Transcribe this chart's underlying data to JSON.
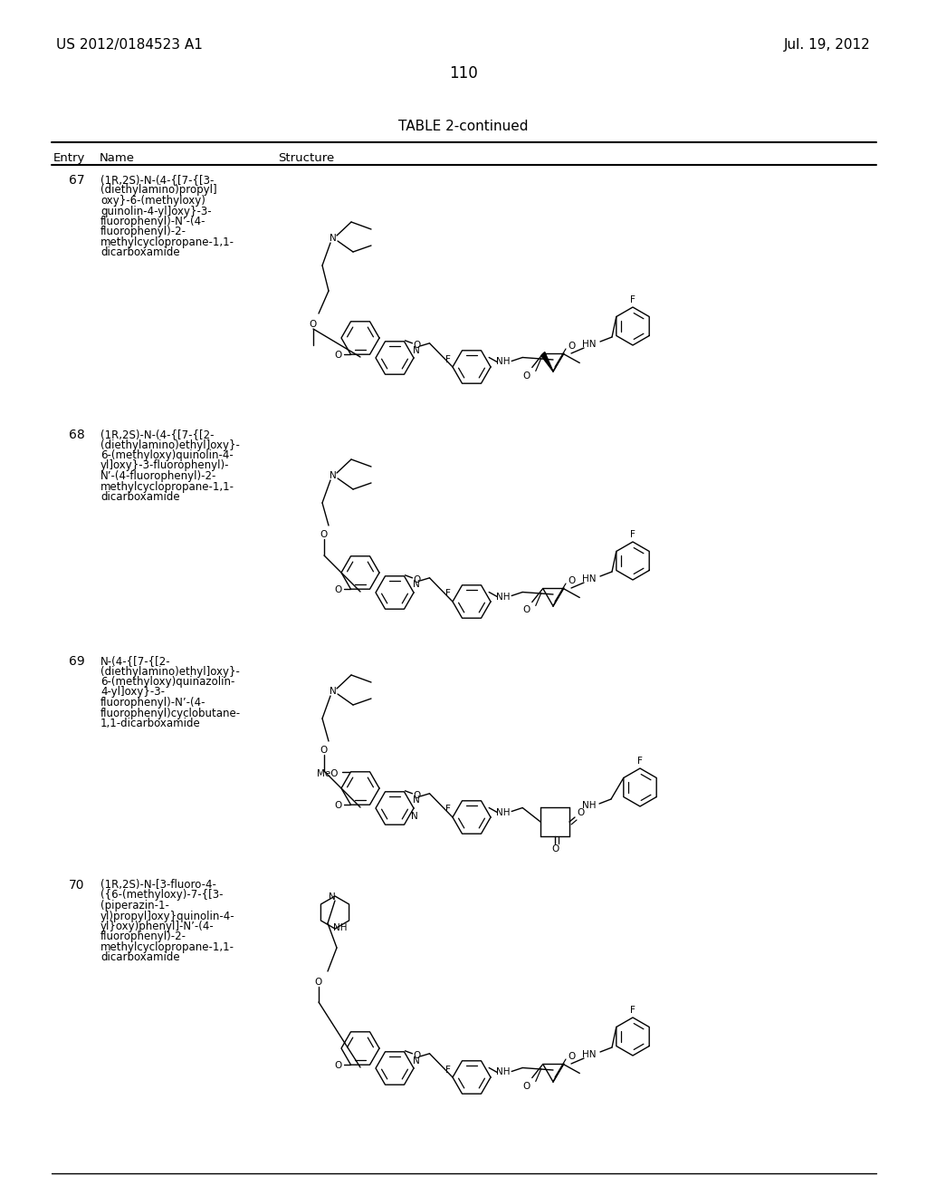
{
  "background_color": "#ffffff",
  "header_left": "US 2012/0184523 A1",
  "header_right": "Jul. 19, 2012",
  "page_number": "110",
  "table_title": "TABLE 2-continued",
  "entries": [
    {
      "number": "67",
      "name": "(1R,2S)-N-(4-{[7-{[3-\n(diethylamino)propyl]\noxy}-6-(methyloxy)\nquinolin-4-yl]oxy}-3-\nfluorophenyl)-N’-(4-\nfluorophenyl)-2-\nmethylcyclopropane-1,1-\ndicarboxamide"
    },
    {
      "number": "68",
      "name": "(1R,2S)-N-(4-{[7-{[2-\n(diethylamino)ethyl]oxy}-\n6-(methyloxy)quinolin-4-\nyl]oxy}-3-fluorophenyl)-\nN’-(4-fluorophenyl)-2-\nmethylcyclopropane-1,1-\ndicarboxamide"
    },
    {
      "number": "69",
      "name": "N-(4-{[7-{[2-\n(diethylamino)ethyl]oxy}-\n6-(methyloxy)quinazolin-\n4-yl]oxy}-3-\nfluorophenyl)-N’-(4-\nfluorophenyl)cyclobutane-\n1,1-dicarboxamide"
    },
    {
      "number": "70",
      "name": "(1R,2S)-N-[3-fluoro-4-\n({6-(methyloxy)-7-{[3-\n(piperazin-1-\nyl)propyl]oxy}quinolin-4-\nyl}oxy)phenyl]-N’-(4-\nfluorophenyl)-2-\nmethylcyclopropane-1,1-\ndicarboxamide"
    }
  ]
}
